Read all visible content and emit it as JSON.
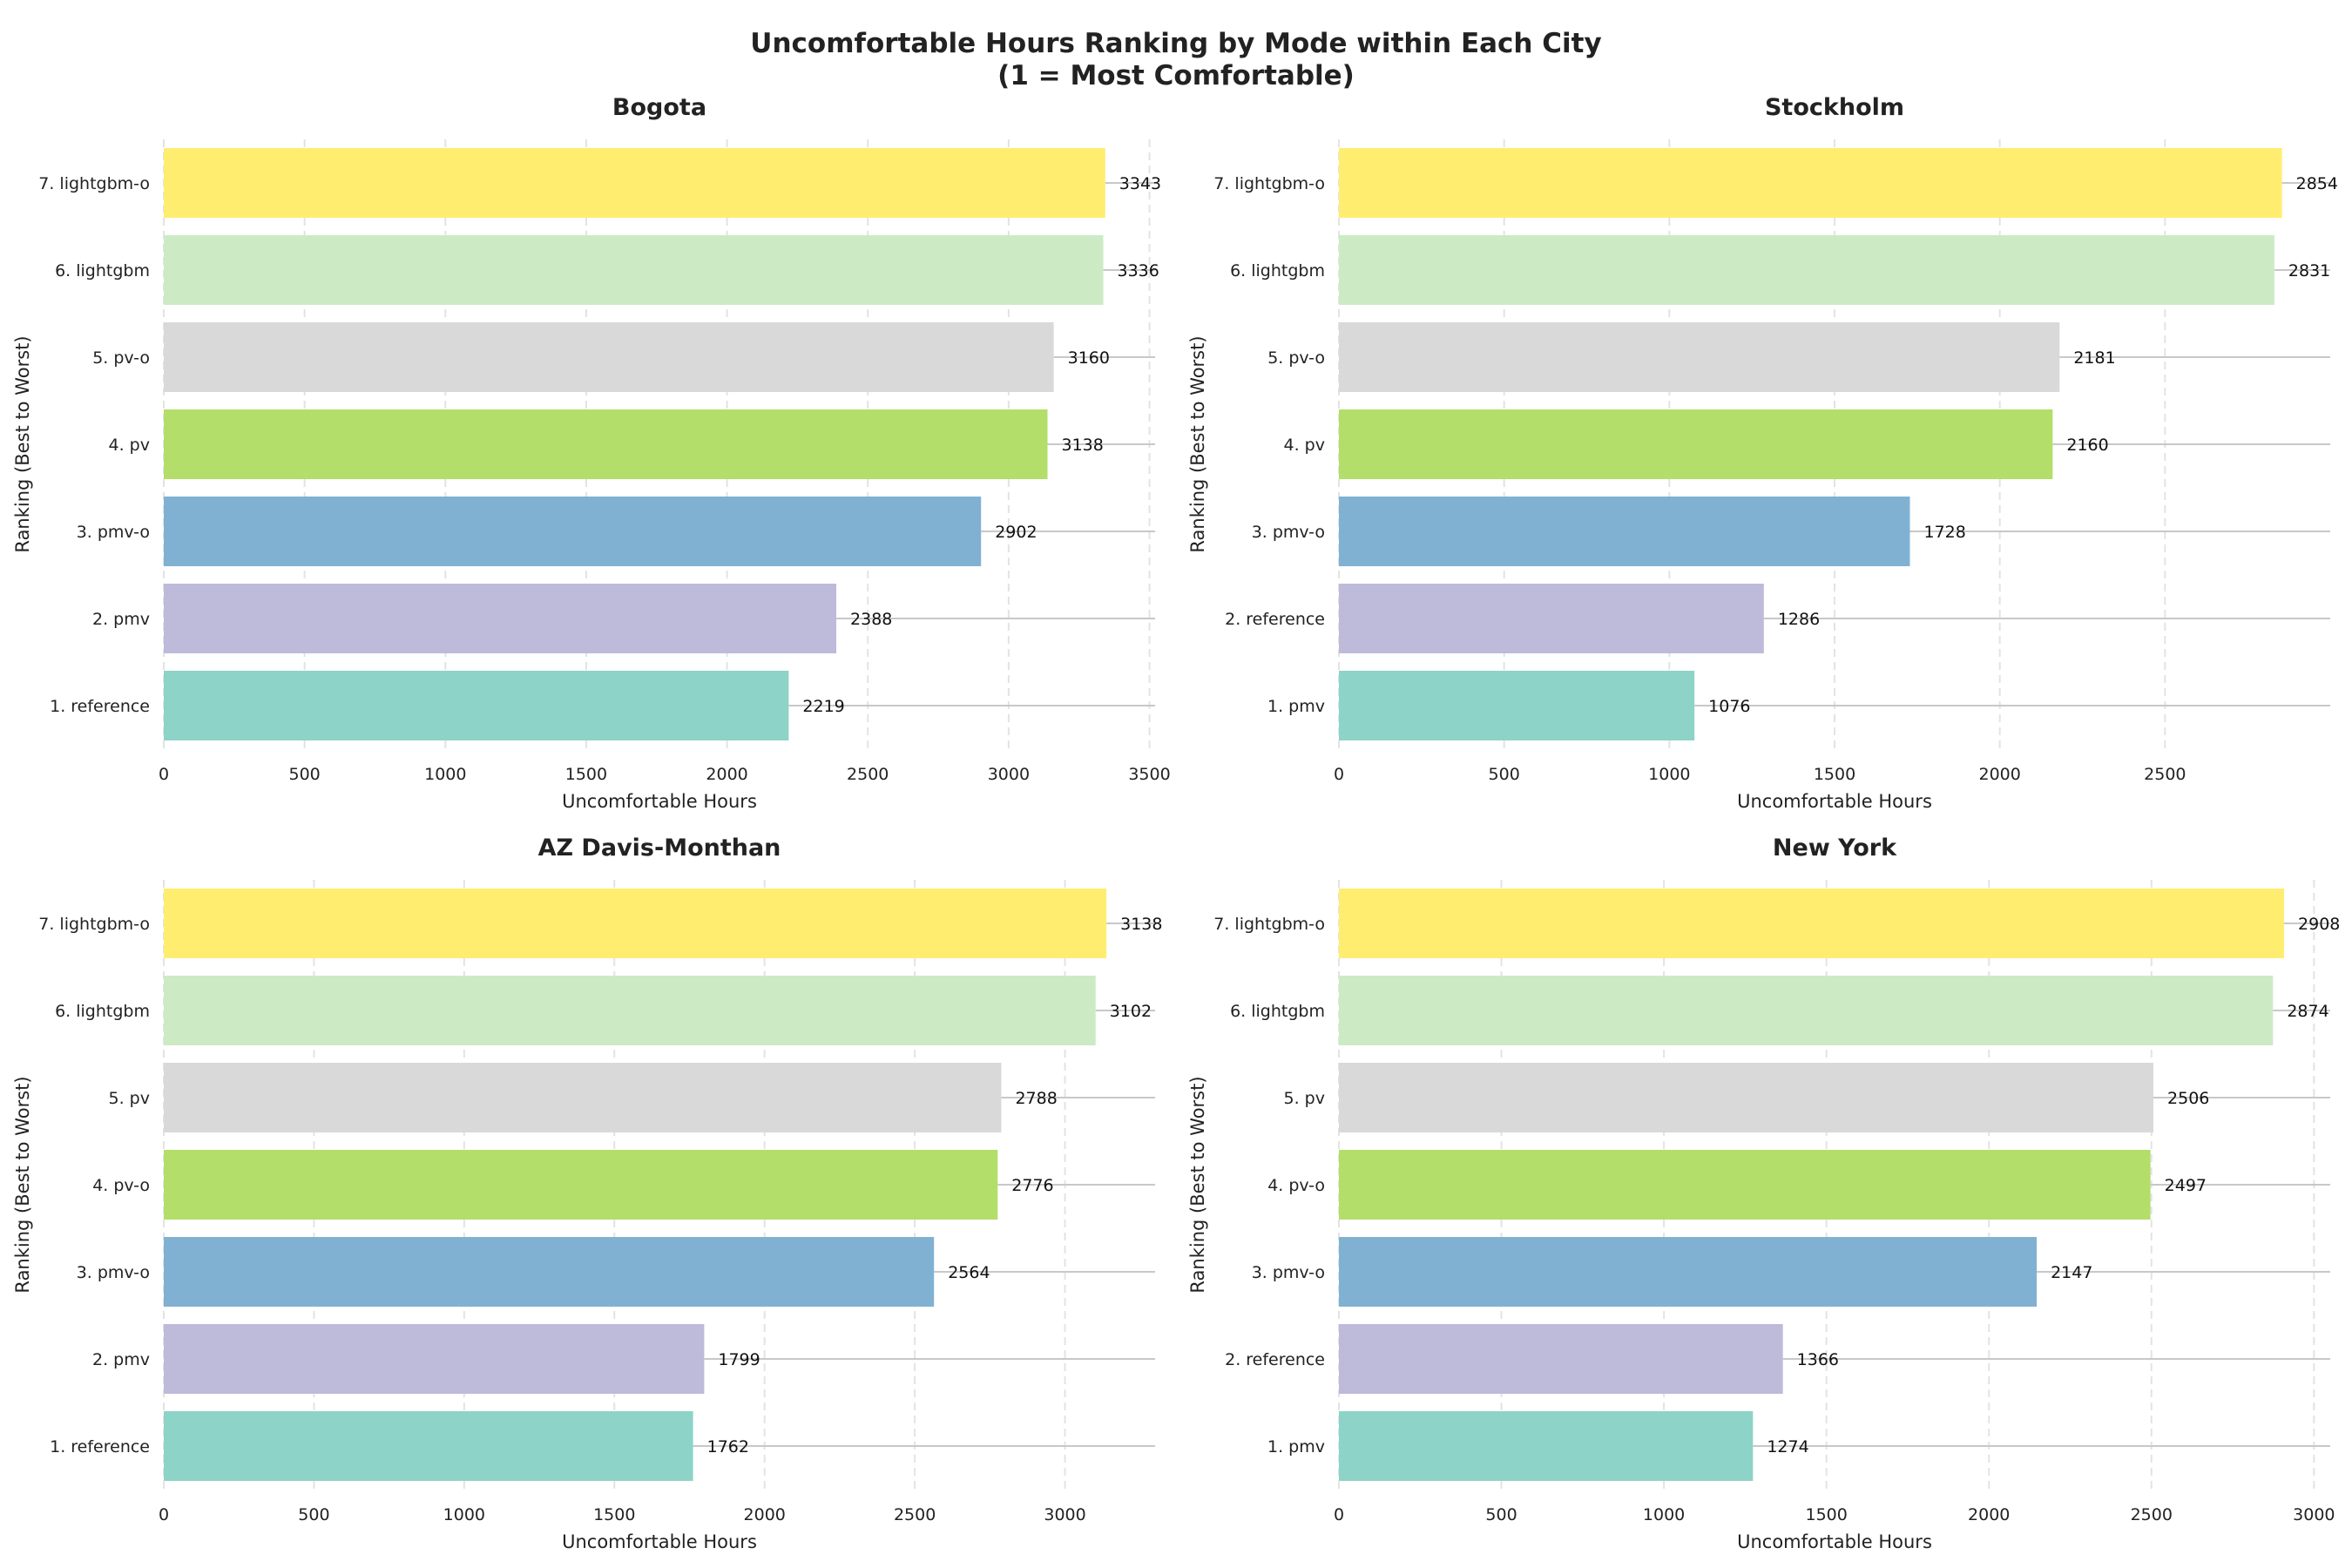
{
  "figure": {
    "title_line1": "Uncomfortable Hours Ranking by Mode within Each City",
    "title_line2": "(1 = Most Comfortable)"
  },
  "colors": {
    "rank1": "#8dd3c7",
    "rank2": "#bebada",
    "rank3": "#80b1d3",
    "rank4": "#b3de69",
    "rank5": "#d9d9d9",
    "rank6": "#ccebc5",
    "rank7": "#ffed6f",
    "grid": "#e3e3e3",
    "leader": "#c8c8c8",
    "text": "#222222"
  },
  "chart_data": [
    {
      "type": "bar",
      "orientation": "horizontal",
      "title": "Bogota",
      "xlabel": "Uncomfortable Hours",
      "ylabel": "Ranking (Best to Worst)",
      "categories": [
        "1. reference",
        "2. pmv",
        "3. pmv-o",
        "4. pv",
        "5. pv-o",
        "6. lightgbm",
        "7. lightgbm-o"
      ],
      "values": [
        2219,
        2388,
        2902,
        3138,
        3160,
        3336,
        3343
      ],
      "xlim": [
        0,
        3520
      ],
      "xticks": [
        0,
        500,
        1000,
        1500,
        2000,
        2500,
        3000,
        3500
      ],
      "grid": "x dashed"
    },
    {
      "type": "bar",
      "orientation": "horizontal",
      "title": "Stockholm",
      "xlabel": "Uncomfortable Hours",
      "ylabel": "Ranking (Best to Worst)",
      "categories": [
        "1. pmv",
        "2. reference",
        "3. pmv-o",
        "4. pv",
        "5. pv-o",
        "6. lightgbm",
        "7. lightgbm-o"
      ],
      "values": [
        1076,
        1286,
        1728,
        2160,
        2181,
        2831,
        2854
      ],
      "xlim": [
        0,
        3000
      ],
      "xticks": [
        0,
        500,
        1000,
        1500,
        2000,
        2500
      ],
      "grid": "x dashed"
    },
    {
      "type": "bar",
      "orientation": "horizontal",
      "title": "AZ Davis-Monthan",
      "xlabel": "Uncomfortable Hours",
      "ylabel": "Ranking (Best to Worst)",
      "categories": [
        "1. reference",
        "2. pmv",
        "3. pmv-o",
        "4. pv-o",
        "5. pv",
        "6. lightgbm",
        "7. lightgbm-o"
      ],
      "values": [
        1762,
        1799,
        2564,
        2776,
        2788,
        3102,
        3138
      ],
      "xlim": [
        0,
        3300
      ],
      "xticks": [
        0,
        500,
        1000,
        1500,
        2000,
        2500,
        3000
      ],
      "grid": "x dashed"
    },
    {
      "type": "bar",
      "orientation": "horizontal",
      "title": "New York",
      "xlabel": "Uncomfortable Hours",
      "ylabel": "Ranking (Best to Worst)",
      "categories": [
        "1. pmv",
        "2. reference",
        "3. pmv-o",
        "4. pv-o",
        "5. pv",
        "6. lightgbm",
        "7. lightgbm-o"
      ],
      "values": [
        1274,
        1366,
        2147,
        2497,
        2506,
        2874,
        2908
      ],
      "xlim": [
        0,
        3050
      ],
      "xticks": [
        0,
        500,
        1000,
        1500,
        2000,
        2500,
        3000
      ],
      "grid": "x dashed"
    }
  ]
}
